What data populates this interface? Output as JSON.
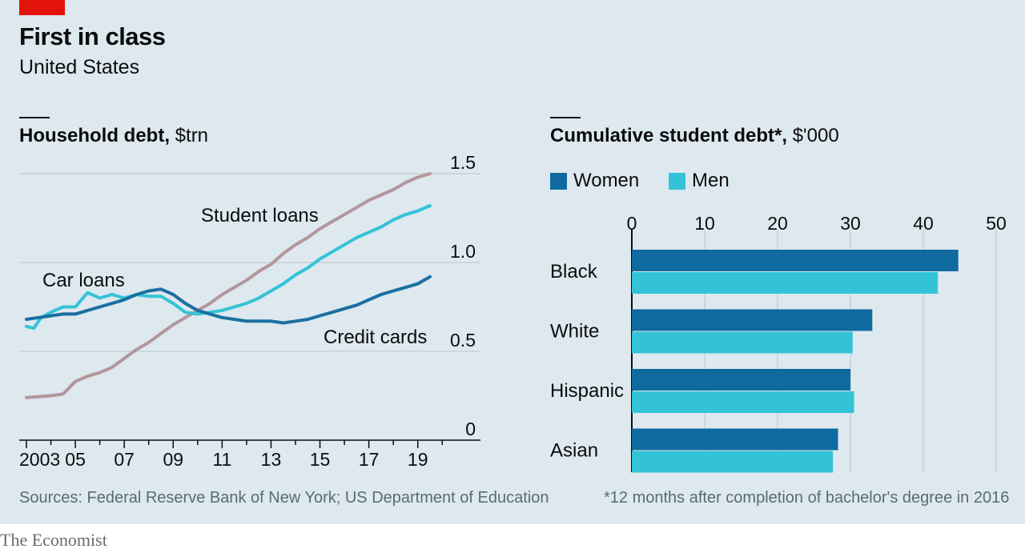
{
  "header": {
    "title": "First in class",
    "subtitle": "United States"
  },
  "left": {
    "title_bold": "Household debt,",
    "title_unit": "$trn",
    "source": "Sources: Federal Reserve Bank of New York; US Department of Education"
  },
  "right": {
    "title_bold": "Cumulative student debt*,",
    "title_unit": "$'000",
    "footnote": "*12 months after completion of bachelor's degree in 2016"
  },
  "brand": "The Economist",
  "colors": {
    "student": "#b3969b",
    "car": "#33c3d6",
    "credit": "#1a6fa1",
    "women": "#0f6aa0",
    "men": "#33c3d6",
    "grid": "#b9c6ce",
    "accent": "#e3120b"
  },
  "chart_data": [
    {
      "type": "line",
      "title": "Household debt, $trn",
      "x_tick_labels": [
        "2003",
        "05",
        "07",
        "09",
        "11",
        "13",
        "15",
        "17",
        "19"
      ],
      "x_ticks": [
        2003,
        2005,
        2007,
        2009,
        2011,
        2013,
        2015,
        2017,
        2019
      ],
      "y_ticks": [
        0,
        0.5,
        1.0,
        1.5
      ],
      "y_tick_labels": [
        "0",
        "0.5",
        "1.0",
        "1.5"
      ],
      "xlim": [
        2003,
        2020
      ],
      "ylim": [
        0,
        1.5
      ],
      "grid": true,
      "series": [
        {
          "name": "Student loans",
          "color_key": "student",
          "points": [
            [
              2003.0,
              0.24
            ],
            [
              2003.5,
              0.245
            ],
            [
              2004.0,
              0.25
            ],
            [
              2004.5,
              0.26
            ],
            [
              2005.0,
              0.33
            ],
            [
              2005.5,
              0.36
            ],
            [
              2006.0,
              0.38
            ],
            [
              2006.5,
              0.41
            ],
            [
              2007.0,
              0.46
            ],
            [
              2007.5,
              0.51
            ],
            [
              2008.0,
              0.55
            ],
            [
              2008.5,
              0.6
            ],
            [
              2009.0,
              0.65
            ],
            [
              2009.5,
              0.69
            ],
            [
              2010.0,
              0.73
            ],
            [
              2010.5,
              0.77
            ],
            [
              2011.0,
              0.82
            ],
            [
              2011.5,
              0.86
            ],
            [
              2012.0,
              0.9
            ],
            [
              2012.5,
              0.95
            ],
            [
              2013.0,
              0.99
            ],
            [
              2013.5,
              1.05
            ],
            [
              2014.0,
              1.1
            ],
            [
              2014.5,
              1.14
            ],
            [
              2015.0,
              1.19
            ],
            [
              2015.5,
              1.23
            ],
            [
              2016.0,
              1.27
            ],
            [
              2016.5,
              1.31
            ],
            [
              2017.0,
              1.35
            ],
            [
              2017.5,
              1.38
            ],
            [
              2018.0,
              1.41
            ],
            [
              2018.5,
              1.45
            ],
            [
              2019.0,
              1.48
            ],
            [
              2019.5,
              1.5
            ]
          ]
        },
        {
          "name": "Car loans",
          "color_key": "car",
          "points": [
            [
              2003.0,
              0.64
            ],
            [
              2003.3,
              0.63
            ],
            [
              2003.6,
              0.69
            ],
            [
              2004.0,
              0.72
            ],
            [
              2004.5,
              0.75
            ],
            [
              2005.0,
              0.75
            ],
            [
              2005.5,
              0.83
            ],
            [
              2006.0,
              0.8
            ],
            [
              2006.5,
              0.82
            ],
            [
              2007.0,
              0.8
            ],
            [
              2007.5,
              0.82
            ],
            [
              2008.0,
              0.81
            ],
            [
              2008.5,
              0.81
            ],
            [
              2009.0,
              0.77
            ],
            [
              2009.5,
              0.72
            ],
            [
              2010.0,
              0.71
            ],
            [
              2010.5,
              0.72
            ],
            [
              2011.0,
              0.73
            ],
            [
              2011.5,
              0.75
            ],
            [
              2012.0,
              0.77
            ],
            [
              2012.5,
              0.8
            ],
            [
              2013.0,
              0.84
            ],
            [
              2013.5,
              0.88
            ],
            [
              2014.0,
              0.93
            ],
            [
              2014.5,
              0.97
            ],
            [
              2015.0,
              1.02
            ],
            [
              2015.5,
              1.06
            ],
            [
              2016.0,
              1.1
            ],
            [
              2016.5,
              1.14
            ],
            [
              2017.0,
              1.17
            ],
            [
              2017.5,
              1.2
            ],
            [
              2018.0,
              1.24
            ],
            [
              2018.5,
              1.27
            ],
            [
              2019.0,
              1.29
            ],
            [
              2019.5,
              1.32
            ]
          ]
        },
        {
          "name": "Credit cards",
          "color_key": "credit",
          "points": [
            [
              2003.0,
              0.68
            ],
            [
              2003.5,
              0.69
            ],
            [
              2004.0,
              0.7
            ],
            [
              2004.5,
              0.71
            ],
            [
              2005.0,
              0.71
            ],
            [
              2005.5,
              0.73
            ],
            [
              2006.0,
              0.75
            ],
            [
              2006.5,
              0.77
            ],
            [
              2007.0,
              0.79
            ],
            [
              2007.5,
              0.82
            ],
            [
              2008.0,
              0.84
            ],
            [
              2008.5,
              0.85
            ],
            [
              2009.0,
              0.82
            ],
            [
              2009.5,
              0.77
            ],
            [
              2010.0,
              0.73
            ],
            [
              2010.5,
              0.71
            ],
            [
              2011.0,
              0.69
            ],
            [
              2011.5,
              0.68
            ],
            [
              2012.0,
              0.67
            ],
            [
              2012.5,
              0.67
            ],
            [
              2013.0,
              0.67
            ],
            [
              2013.5,
              0.66
            ],
            [
              2014.0,
              0.67
            ],
            [
              2014.5,
              0.68
            ],
            [
              2015.0,
              0.7
            ],
            [
              2015.5,
              0.72
            ],
            [
              2016.0,
              0.74
            ],
            [
              2016.5,
              0.76
            ],
            [
              2017.0,
              0.79
            ],
            [
              2017.5,
              0.82
            ],
            [
              2018.0,
              0.84
            ],
            [
              2018.5,
              0.86
            ],
            [
              2019.0,
              0.88
            ],
            [
              2019.5,
              0.92
            ]
          ]
        }
      ],
      "annotations": [
        {
          "text": "Student loans",
          "series": "Student loans"
        },
        {
          "text": "Car loans",
          "series": "Car loans"
        },
        {
          "text": "Credit cards",
          "series": "Credit cards"
        }
      ]
    },
    {
      "type": "bar",
      "orientation": "horizontal",
      "title": "Cumulative student debt*, $'000",
      "categories": [
        "Black",
        "White",
        "Hispanic",
        "Asian"
      ],
      "x_ticks": [
        0,
        10,
        20,
        30,
        40,
        50
      ],
      "xlim": [
        0,
        50
      ],
      "legend": "top-left",
      "series": [
        {
          "name": "Women",
          "color_key": "women",
          "values": [
            44.8,
            33.0,
            30.0,
            28.3
          ]
        },
        {
          "name": "Men",
          "color_key": "men",
          "values": [
            42.0,
            30.3,
            30.5,
            27.6
          ]
        }
      ]
    }
  ]
}
